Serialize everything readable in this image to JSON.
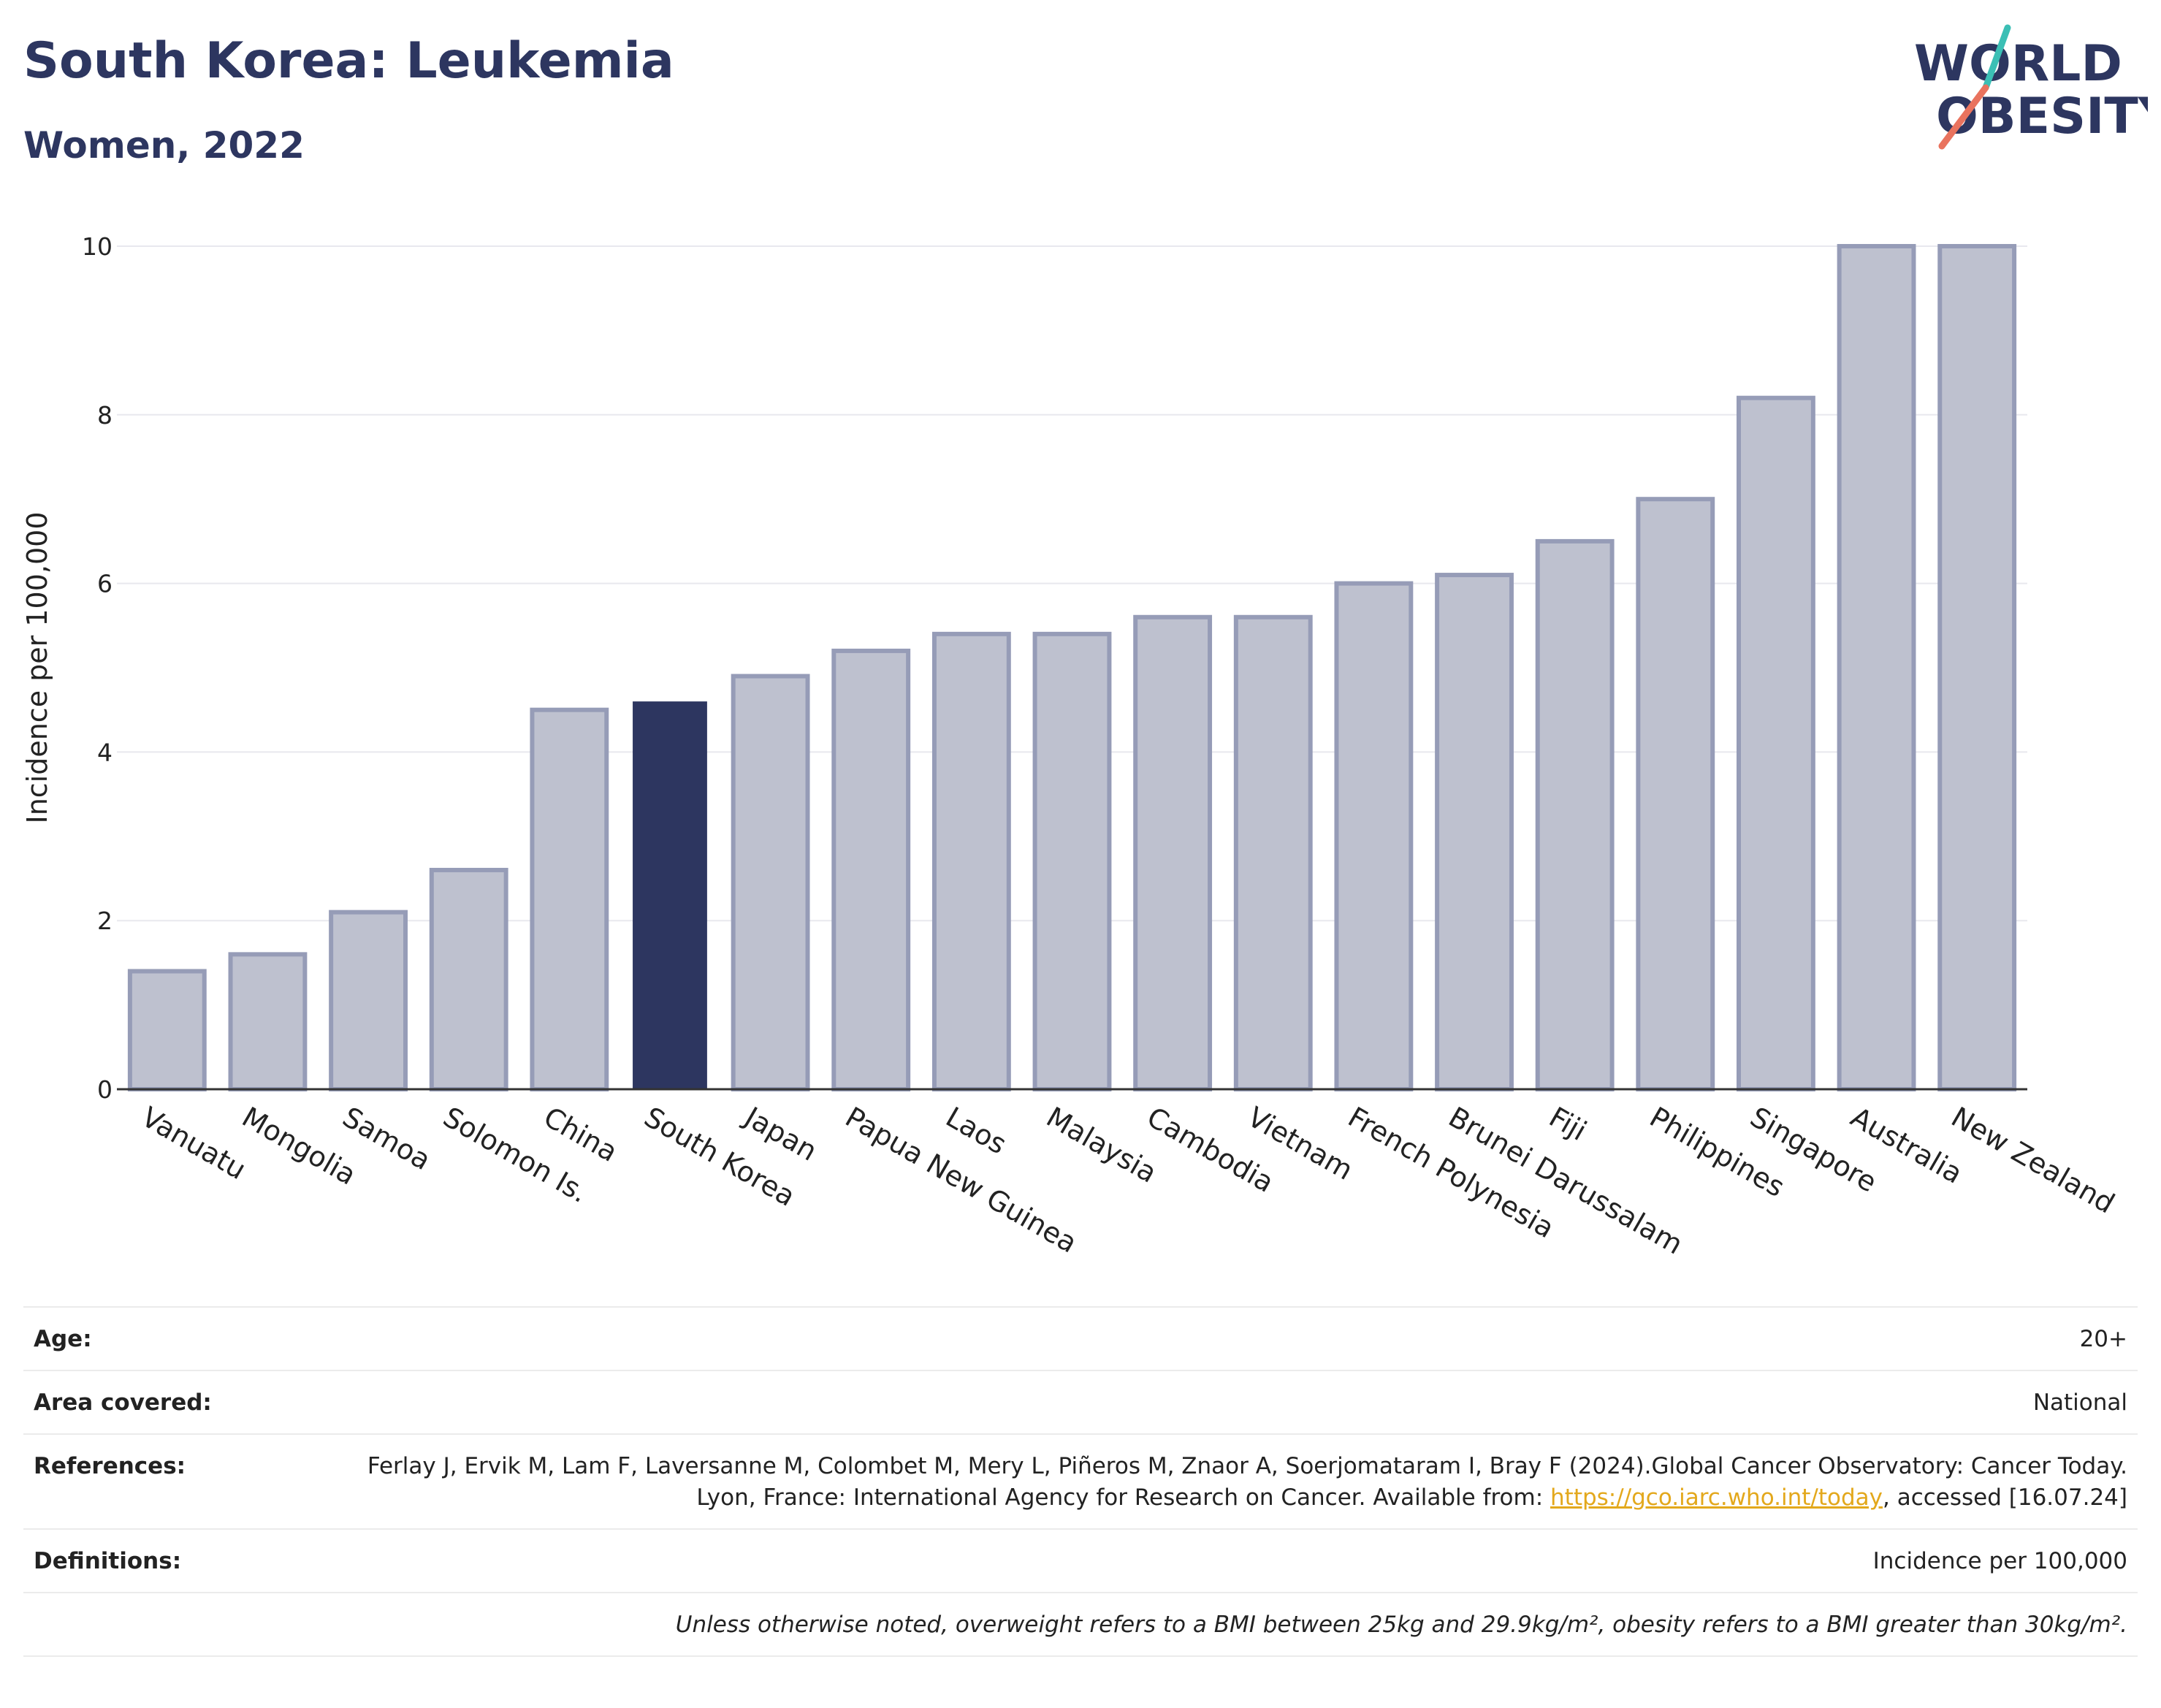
{
  "title": "South Korea: Leukemia",
  "subtitle": "Women, 2022",
  "logo": {
    "line1": "WORLD",
    "line2": "OBESITY",
    "accent_teal": "#3bbfb5",
    "accent_coral": "#e9735e"
  },
  "colors": {
    "highlight": "#2d3660",
    "bar_fill": "#bec1cf",
    "bar_stroke": "#969cb7",
    "grid": "#e8e8ee"
  },
  "chart_data": {
    "type": "bar",
    "ylabel": "Incidence per 100,000",
    "ylim": [
      0,
      10
    ],
    "yticks": [
      0,
      2,
      4,
      6,
      8,
      10
    ],
    "highlight": "South Korea",
    "grid": true,
    "categories": [
      "Vanuatu",
      "Mongolia",
      "Samoa",
      "Solomon Is.",
      "China",
      "South Korea",
      "Japan",
      "Papua New Guinea",
      "Laos",
      "Malaysia",
      "Cambodia",
      "Vietnam",
      "French Polynesia",
      "Brunei Darussalam",
      "Fiji",
      "Philippines",
      "Singapore",
      "Australia",
      "New Zealand"
    ],
    "values": [
      1.4,
      1.6,
      2.1,
      2.6,
      4.5,
      4.6,
      4.9,
      5.2,
      5.4,
      5.4,
      5.6,
      5.6,
      6.0,
      6.1,
      6.5,
      7.0,
      8.2,
      10.0,
      10.0
    ]
  },
  "table": {
    "age": {
      "label": "Age:",
      "value": "20+"
    },
    "area": {
      "label": "Area covered:",
      "value": "National"
    },
    "references": {
      "label": "References:",
      "text1": "Ferlay J, Ervik M, Lam F, Laversanne M, Colombet M, Mery L, Piñeros M, Znaor A, Soerjomataram I, Bray F (2024).Global Cancer Observatory: Cancer Today. Lyon, France: International Agency for Research on Cancer. Available from: ",
      "link": "https://gco.iarc.who.int/today",
      "text2": ", accessed [16.07.24]"
    },
    "definitions": {
      "label": "Definitions:",
      "value": "Incidence per 100,000"
    },
    "note": "Unless otherwise noted, overweight refers to a BMI between 25kg and 29.9kg/m², obesity refers to a BMI greater than 30kg/m²."
  }
}
